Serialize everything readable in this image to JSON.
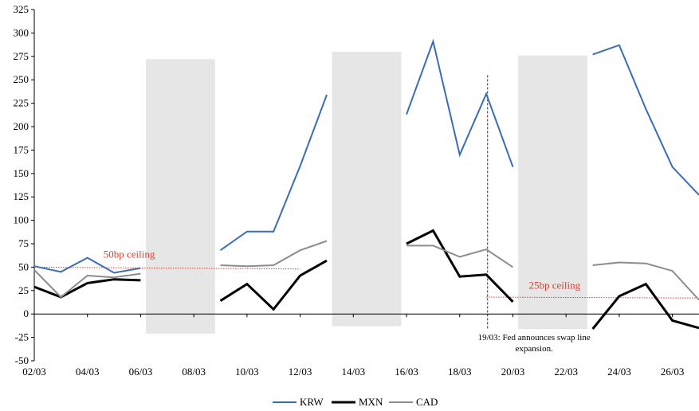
{
  "chart_data": {
    "type": "line",
    "title": "",
    "xlabel": "",
    "ylabel": "",
    "ylim": [
      -50,
      325
    ],
    "yticks": [
      -50,
      -25,
      0,
      25,
      50,
      75,
      100,
      125,
      150,
      175,
      200,
      225,
      250,
      275,
      300,
      325
    ],
    "xlim": [
      2,
      27
    ],
    "x_tick_days": [
      2,
      4,
      6,
      8,
      10,
      12,
      14,
      16,
      18,
      20,
      22,
      24,
      26
    ],
    "x_tick_labels": [
      "02/03",
      "04/03",
      "06/03",
      "08/03",
      "10/03",
      "12/03",
      "14/03",
      "16/03",
      "18/03",
      "20/03",
      "22/03",
      "24/03",
      "26/03"
    ],
    "grid": false,
    "legend_position": "bottom",
    "series": [
      {
        "name": "KRW",
        "color": "#3a6db5",
        "width": 2,
        "segments": [
          [
            [
              2,
              51
            ],
            [
              3,
              45
            ],
            [
              4,
              60
            ],
            [
              5,
              44
            ],
            [
              6,
              49
            ]
          ],
          [
            [
              9,
              68
            ],
            [
              10,
              88
            ],
            [
              11,
              88
            ],
            [
              12,
              158
            ],
            [
              13,
              234
            ]
          ],
          [
            [
              16,
              213
            ],
            [
              17,
              291
            ],
            [
              18,
              170
            ],
            [
              19,
              235
            ],
            [
              20,
              157
            ]
          ],
          [
            [
              23,
              277
            ],
            [
              24,
              287
            ],
            [
              25,
              219
            ],
            [
              26,
              157
            ],
            [
              27,
              127
            ]
          ]
        ]
      },
      {
        "name": "MXN",
        "color": "#000000",
        "width": 3,
        "segments": [
          [
            [
              2,
              29
            ],
            [
              3,
              18
            ],
            [
              4,
              33
            ],
            [
              5,
              37
            ],
            [
              6,
              36
            ]
          ],
          [
            [
              9,
              14
            ],
            [
              10,
              32
            ],
            [
              11,
              5
            ],
            [
              12,
              41
            ],
            [
              13,
              57
            ]
          ],
          [
            [
              16,
              75
            ],
            [
              17,
              89
            ],
            [
              18,
              40
            ],
            [
              19,
              42
            ],
            [
              20,
              13
            ]
          ],
          [
            [
              23,
              -16
            ],
            [
              24,
              19
            ],
            [
              25,
              32
            ],
            [
              26,
              -7
            ],
            [
              27,
              -15
            ]
          ]
        ]
      },
      {
        "name": "CAD",
        "color": "#8c8c8c",
        "width": 2,
        "segments": [
          [
            [
              2,
              47
            ],
            [
              3,
              18
            ],
            [
              4,
              41
            ],
            [
              5,
              39
            ],
            [
              6,
              43
            ]
          ],
          [
            [
              9,
              52
            ],
            [
              10,
              51
            ],
            [
              11,
              52
            ],
            [
              12,
              68
            ],
            [
              13,
              78
            ]
          ],
          [
            [
              16,
              73
            ],
            [
              17,
              73
            ],
            [
              18,
              61
            ],
            [
              19,
              69
            ],
            [
              20,
              50
            ]
          ],
          [
            [
              23,
              52
            ],
            [
              24,
              55
            ],
            [
              25,
              54
            ],
            [
              26,
              46
            ],
            [
              27,
              15
            ]
          ]
        ]
      }
    ],
    "shaded_bands": [
      {
        "x0": 6.2,
        "x1": 8.8,
        "y0": -21,
        "y1": 272
      },
      {
        "x0": 13.2,
        "x1": 15.8,
        "y0": -13,
        "y1": 280
      },
      {
        "x0": 20.2,
        "x1": 22.8,
        "y0": -16,
        "y1": 276
      }
    ],
    "reference_lines": [
      {
        "label": "50bp ceiling",
        "x0": 2,
        "x1": 12,
        "y0": 50,
        "y1": 48,
        "color": "#e03c31",
        "label_x": 4.6,
        "label_y": 60
      },
      {
        "label": "25bp ceiling",
        "x0": 19,
        "x1": 27,
        "y0": 18,
        "y1": 17,
        "color": "#e03c31",
        "label_x": 20.6,
        "label_y": 27
      }
    ],
    "vertical_line": {
      "x": 19.05,
      "y0": -17,
      "y1": 255,
      "note_lines": [
        "19/03: Fed announces swap line",
        "expansion."
      ],
      "note_x": 20.8,
      "note_y": -28
    }
  }
}
